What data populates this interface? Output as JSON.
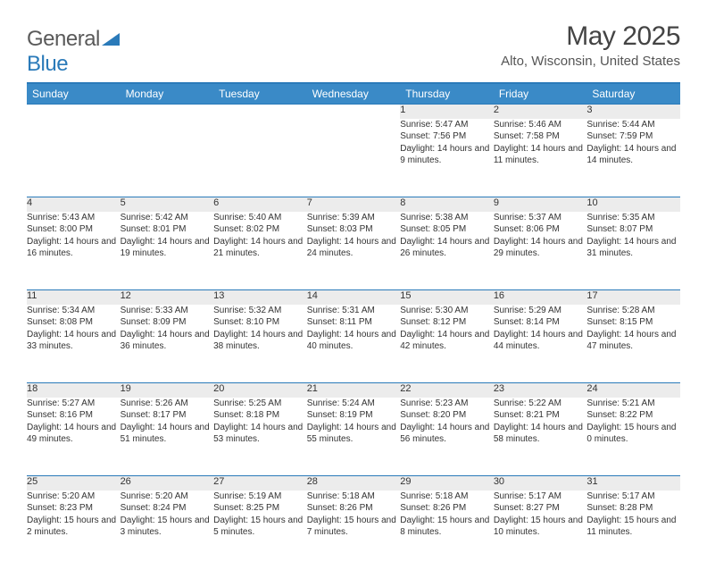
{
  "logo": {
    "part1": "General",
    "part2": "Blue"
  },
  "title": "May 2025",
  "location": "Alto, Wisconsin, United States",
  "colors": {
    "header_bg": "#3a8ac7",
    "border": "#2a7ab9",
    "daynum_bg": "#ececec",
    "text": "#333333",
    "title_text": "#444444"
  },
  "weekdays": [
    "Sunday",
    "Monday",
    "Tuesday",
    "Wednesday",
    "Thursday",
    "Friday",
    "Saturday"
  ],
  "weeks": [
    [
      null,
      null,
      null,
      null,
      {
        "n": "1",
        "sr": "5:47 AM",
        "ss": "7:56 PM",
        "dl": "14 hours and 9 minutes."
      },
      {
        "n": "2",
        "sr": "5:46 AM",
        "ss": "7:58 PM",
        "dl": "14 hours and 11 minutes."
      },
      {
        "n": "3",
        "sr": "5:44 AM",
        "ss": "7:59 PM",
        "dl": "14 hours and 14 minutes."
      }
    ],
    [
      {
        "n": "4",
        "sr": "5:43 AM",
        "ss": "8:00 PM",
        "dl": "14 hours and 16 minutes."
      },
      {
        "n": "5",
        "sr": "5:42 AM",
        "ss": "8:01 PM",
        "dl": "14 hours and 19 minutes."
      },
      {
        "n": "6",
        "sr": "5:40 AM",
        "ss": "8:02 PM",
        "dl": "14 hours and 21 minutes."
      },
      {
        "n": "7",
        "sr": "5:39 AM",
        "ss": "8:03 PM",
        "dl": "14 hours and 24 minutes."
      },
      {
        "n": "8",
        "sr": "5:38 AM",
        "ss": "8:05 PM",
        "dl": "14 hours and 26 minutes."
      },
      {
        "n": "9",
        "sr": "5:37 AM",
        "ss": "8:06 PM",
        "dl": "14 hours and 29 minutes."
      },
      {
        "n": "10",
        "sr": "5:35 AM",
        "ss": "8:07 PM",
        "dl": "14 hours and 31 minutes."
      }
    ],
    [
      {
        "n": "11",
        "sr": "5:34 AM",
        "ss": "8:08 PM",
        "dl": "14 hours and 33 minutes."
      },
      {
        "n": "12",
        "sr": "5:33 AM",
        "ss": "8:09 PM",
        "dl": "14 hours and 36 minutes."
      },
      {
        "n": "13",
        "sr": "5:32 AM",
        "ss": "8:10 PM",
        "dl": "14 hours and 38 minutes."
      },
      {
        "n": "14",
        "sr": "5:31 AM",
        "ss": "8:11 PM",
        "dl": "14 hours and 40 minutes."
      },
      {
        "n": "15",
        "sr": "5:30 AM",
        "ss": "8:12 PM",
        "dl": "14 hours and 42 minutes."
      },
      {
        "n": "16",
        "sr": "5:29 AM",
        "ss": "8:14 PM",
        "dl": "14 hours and 44 minutes."
      },
      {
        "n": "17",
        "sr": "5:28 AM",
        "ss": "8:15 PM",
        "dl": "14 hours and 47 minutes."
      }
    ],
    [
      {
        "n": "18",
        "sr": "5:27 AM",
        "ss": "8:16 PM",
        "dl": "14 hours and 49 minutes."
      },
      {
        "n": "19",
        "sr": "5:26 AM",
        "ss": "8:17 PM",
        "dl": "14 hours and 51 minutes."
      },
      {
        "n": "20",
        "sr": "5:25 AM",
        "ss": "8:18 PM",
        "dl": "14 hours and 53 minutes."
      },
      {
        "n": "21",
        "sr": "5:24 AM",
        "ss": "8:19 PM",
        "dl": "14 hours and 55 minutes."
      },
      {
        "n": "22",
        "sr": "5:23 AM",
        "ss": "8:20 PM",
        "dl": "14 hours and 56 minutes."
      },
      {
        "n": "23",
        "sr": "5:22 AM",
        "ss": "8:21 PM",
        "dl": "14 hours and 58 minutes."
      },
      {
        "n": "24",
        "sr": "5:21 AM",
        "ss": "8:22 PM",
        "dl": "15 hours and 0 minutes."
      }
    ],
    [
      {
        "n": "25",
        "sr": "5:20 AM",
        "ss": "8:23 PM",
        "dl": "15 hours and 2 minutes."
      },
      {
        "n": "26",
        "sr": "5:20 AM",
        "ss": "8:24 PM",
        "dl": "15 hours and 3 minutes."
      },
      {
        "n": "27",
        "sr": "5:19 AM",
        "ss": "8:25 PM",
        "dl": "15 hours and 5 minutes."
      },
      {
        "n": "28",
        "sr": "5:18 AM",
        "ss": "8:26 PM",
        "dl": "15 hours and 7 minutes."
      },
      {
        "n": "29",
        "sr": "5:18 AM",
        "ss": "8:26 PM",
        "dl": "15 hours and 8 minutes."
      },
      {
        "n": "30",
        "sr": "5:17 AM",
        "ss": "8:27 PM",
        "dl": "15 hours and 10 minutes."
      },
      {
        "n": "31",
        "sr": "5:17 AM",
        "ss": "8:28 PM",
        "dl": "15 hours and 11 minutes."
      }
    ]
  ],
  "labels": {
    "sunrise": "Sunrise:",
    "sunset": "Sunset:",
    "daylight": "Daylight:"
  }
}
